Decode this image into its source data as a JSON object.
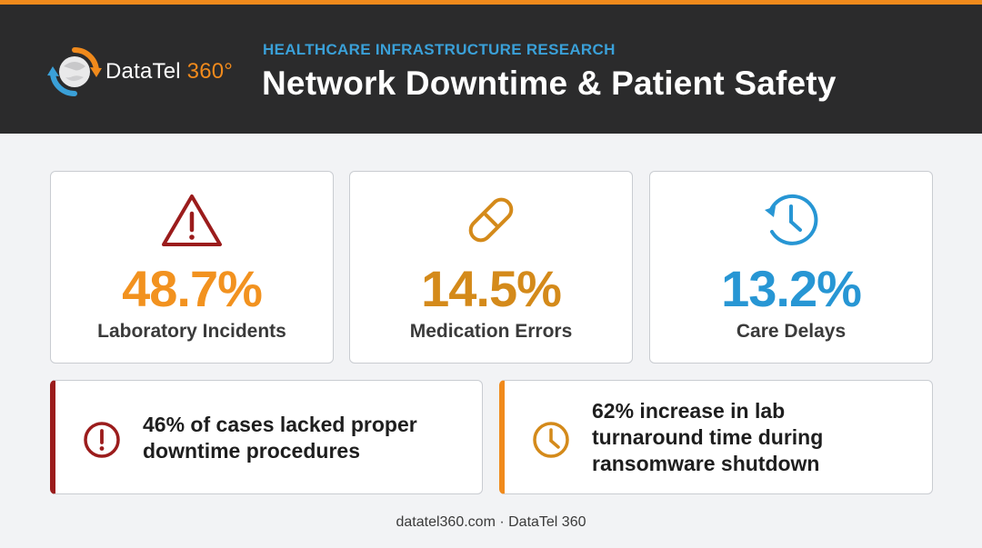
{
  "header": {
    "logo_text_main": "DataTel ",
    "logo_text_num": "360°",
    "kicker": "HEALTHCARE INFRASTRUCTURE RESEARCH",
    "title": "Network Downtime & Patient Safety"
  },
  "colors": {
    "accent_orange": "#f08a1c",
    "header_bg": "#2b2b2c",
    "kicker_blue": "#3aa0d8",
    "alert_red": "#9b1c1c",
    "stat_orange": "#f2921f",
    "stat_amber": "#d48a1a",
    "stat_blue": "#2796d4"
  },
  "stats": [
    {
      "icon": "warning-triangle-icon",
      "value": "48.7%",
      "label": "Laboratory Incidents"
    },
    {
      "icon": "pill-capsule-icon",
      "value": "14.5%",
      "label": "Medication Errors"
    },
    {
      "icon": "clock-history-icon",
      "value": "13.2%",
      "label": "Care Delays"
    }
  ],
  "notes": [
    {
      "icon": "alert-circle-icon",
      "lines": [
        "46% of cases lacked proper",
        "downtime procedures"
      ]
    },
    {
      "icon": "clock-icon",
      "lines": [
        "62% increase in lab",
        "turnaround time during",
        "ransomware shutdown"
      ]
    }
  ],
  "footer": {
    "text": "datatel360.com · DataTel 360"
  }
}
